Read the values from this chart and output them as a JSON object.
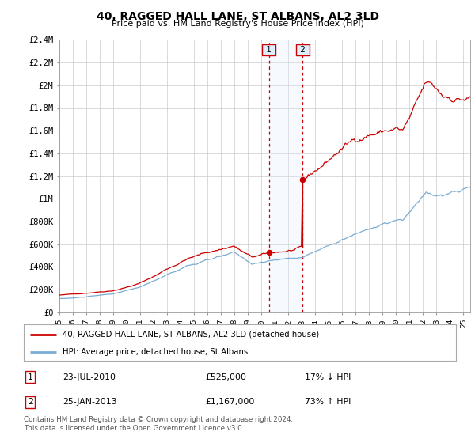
{
  "title": "40, RAGGED HALL LANE, ST ALBANS, AL2 3LD",
  "subtitle": "Price paid vs. HM Land Registry's House Price Index (HPI)",
  "ylabel_ticks": [
    "£0",
    "£200K",
    "£400K",
    "£600K",
    "£800K",
    "£1M",
    "£1.2M",
    "£1.4M",
    "£1.6M",
    "£1.8M",
    "£2M",
    "£2.2M",
    "£2.4M"
  ],
  "ylim": [
    0,
    2400000
  ],
  "ytick_vals": [
    0,
    200000,
    400000,
    600000,
    800000,
    1000000,
    1200000,
    1400000,
    1600000,
    1800000,
    2000000,
    2200000,
    2400000
  ],
  "red_line_color": "#cc0000",
  "blue_line_color": "#7aadd4",
  "transaction1_price": 525000,
  "transaction1_x": 2010.55,
  "transaction2_price": 1167000,
  "transaction2_x": 2013.07,
  "annotation_box_color": "#ddeeff",
  "annotation_box_edge": "#cc0000",
  "legend_line1": "40, RAGGED HALL LANE, ST ALBANS, AL2 3LD (detached house)",
  "legend_line2": "HPI: Average price, detached house, St Albans",
  "footer": "Contains HM Land Registry data © Crown copyright and database right 2024.\nThis data is licensed under the Open Government Licence v3.0.",
  "table_row1_label": "1",
  "table_row1_date": "23-JUL-2010",
  "table_row1_price": "£525,000",
  "table_row1_hpi": "17% ↓ HPI",
  "table_row2_label": "2",
  "table_row2_date": "25-JAN-2013",
  "table_row2_price": "£1,167,000",
  "table_row2_hpi": "73% ↑ HPI",
  "xlim_start": 1995.0,
  "xlim_end": 2025.5,
  "background_color": "#ffffff",
  "grid_color": "#cccccc"
}
